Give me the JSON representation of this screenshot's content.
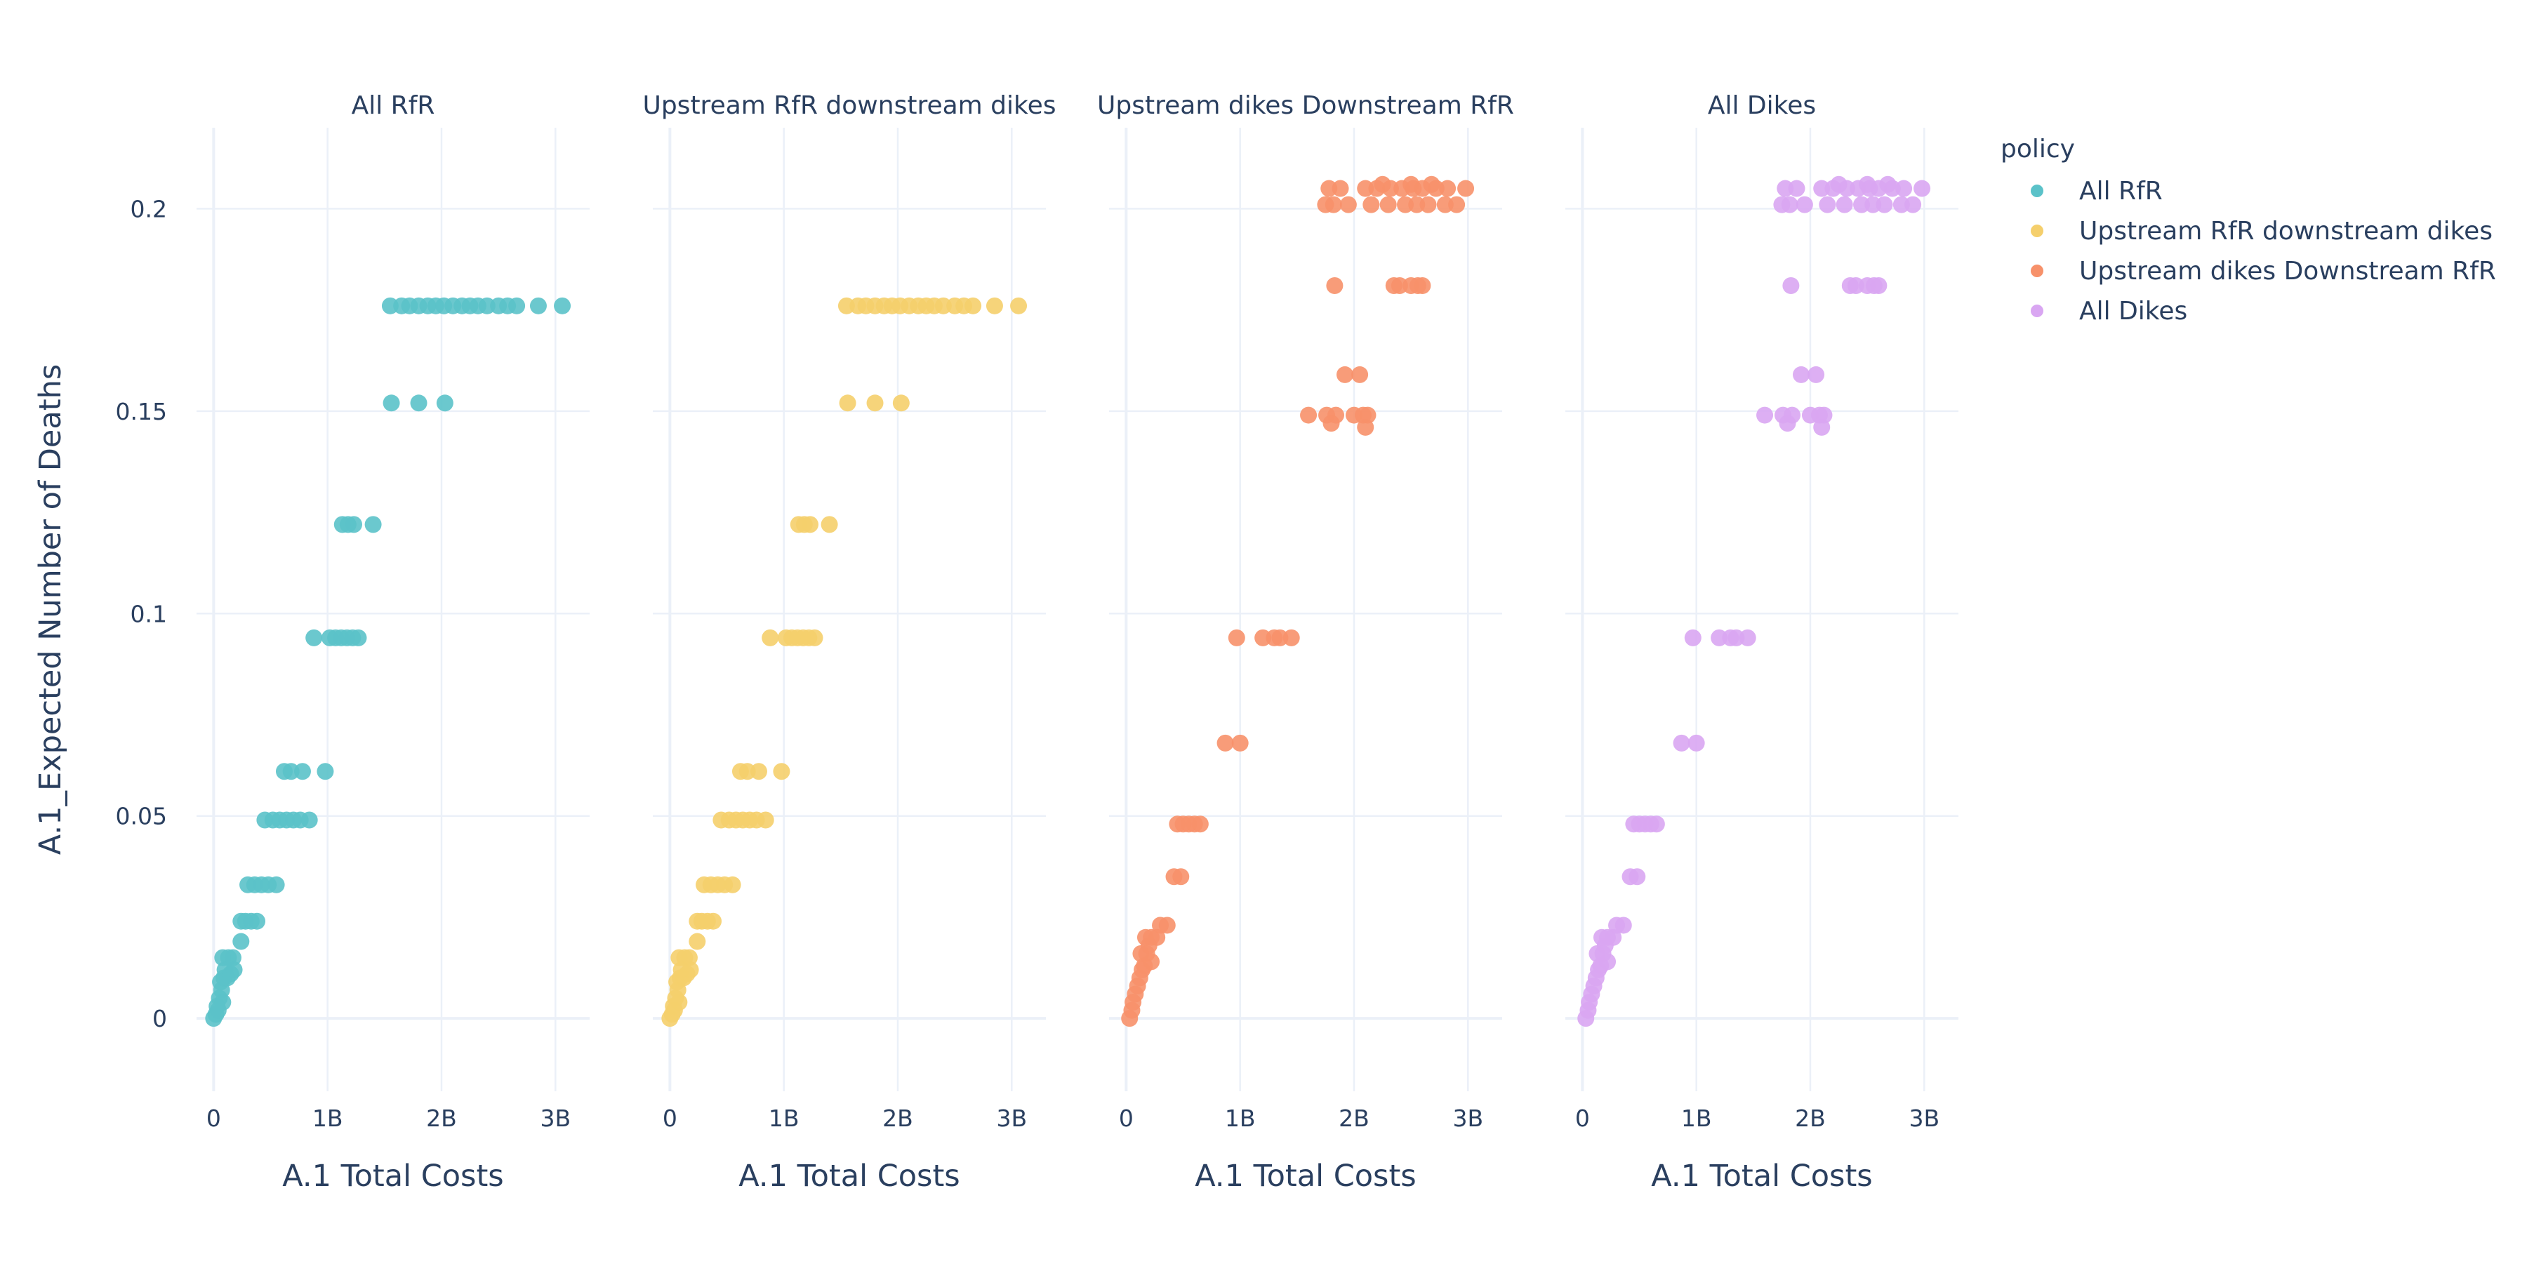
{
  "chart_data": {
    "type": "scatter",
    "ylabel": "A.1_Expected Number of Deaths",
    "xlabel": "A.1 Total Costs",
    "x_ticks": [
      {
        "v": 0,
        "label": "0"
      },
      {
        "v": 1,
        "label": "1B"
      },
      {
        "v": 2,
        "label": "2B"
      },
      {
        "v": 3,
        "label": "3B"
      }
    ],
    "y_ticks": [
      {
        "v": 0,
        "label": "0"
      },
      {
        "v": 0.05,
        "label": "0.05"
      },
      {
        "v": 0.1,
        "label": "0.1"
      },
      {
        "v": 0.15,
        "label": "0.15"
      },
      {
        "v": 0.2,
        "label": "0.2"
      }
    ],
    "xlim": [
      -0.15,
      3.3
    ],
    "ylim": [
      -0.018,
      0.22
    ],
    "grid": true,
    "x_unit_note": "x values in billions",
    "legend": {
      "title": "policy",
      "placement": "right"
    },
    "series": [
      {
        "name": "All RfR",
        "color": "#5bc2c9",
        "points": [
          [
            0.0,
            0.0
          ],
          [
            0.02,
            0.001
          ],
          [
            0.03,
            0.003
          ],
          [
            0.05,
            0.005
          ],
          [
            0.07,
            0.007
          ],
          [
            0.06,
            0.009
          ],
          [
            0.09,
            0.01
          ],
          [
            0.1,
            0.012
          ],
          [
            0.08,
            0.015
          ],
          [
            0.13,
            0.015
          ],
          [
            0.17,
            0.015
          ],
          [
            0.12,
            0.01
          ],
          [
            0.15,
            0.011
          ],
          [
            0.18,
            0.012
          ],
          [
            0.04,
            0.002
          ],
          [
            0.08,
            0.004
          ],
          [
            0.24,
            0.019
          ],
          [
            0.24,
            0.024
          ],
          [
            0.28,
            0.024
          ],
          [
            0.33,
            0.024
          ],
          [
            0.38,
            0.024
          ],
          [
            0.3,
            0.033
          ],
          [
            0.36,
            0.033
          ],
          [
            0.42,
            0.033
          ],
          [
            0.48,
            0.033
          ],
          [
            0.55,
            0.033
          ],
          [
            0.45,
            0.049
          ],
          [
            0.52,
            0.049
          ],
          [
            0.58,
            0.049
          ],
          [
            0.64,
            0.049
          ],
          [
            0.7,
            0.049
          ],
          [
            0.76,
            0.049
          ],
          [
            0.84,
            0.049
          ],
          [
            0.62,
            0.061
          ],
          [
            0.68,
            0.061
          ],
          [
            0.78,
            0.061
          ],
          [
            0.98,
            0.061
          ],
          [
            0.88,
            0.094
          ],
          [
            1.02,
            0.094
          ],
          [
            1.07,
            0.094
          ],
          [
            1.12,
            0.094
          ],
          [
            1.17,
            0.094
          ],
          [
            1.22,
            0.094
          ],
          [
            1.27,
            0.094
          ],
          [
            1.13,
            0.122
          ],
          [
            1.18,
            0.122
          ],
          [
            1.23,
            0.122
          ],
          [
            1.4,
            0.122
          ],
          [
            1.56,
            0.152
          ],
          [
            1.8,
            0.152
          ],
          [
            2.03,
            0.152
          ],
          [
            1.55,
            0.176
          ],
          [
            1.65,
            0.176
          ],
          [
            1.72,
            0.176
          ],
          [
            1.8,
            0.176
          ],
          [
            1.88,
            0.176
          ],
          [
            1.95,
            0.176
          ],
          [
            2.02,
            0.176
          ],
          [
            2.1,
            0.176
          ],
          [
            2.18,
            0.176
          ],
          [
            2.25,
            0.176
          ],
          [
            2.32,
            0.176
          ],
          [
            2.4,
            0.176
          ],
          [
            2.5,
            0.176
          ],
          [
            2.58,
            0.176
          ],
          [
            2.66,
            0.176
          ],
          [
            2.85,
            0.176
          ],
          [
            3.06,
            0.176
          ]
        ]
      },
      {
        "name": "Upstream RfR downstream dikes",
        "color": "#f5cf6c",
        "points": [
          [
            0.0,
            0.0
          ],
          [
            0.02,
            0.001
          ],
          [
            0.03,
            0.003
          ],
          [
            0.05,
            0.005
          ],
          [
            0.07,
            0.007
          ],
          [
            0.06,
            0.009
          ],
          [
            0.09,
            0.01
          ],
          [
            0.1,
            0.012
          ],
          [
            0.08,
            0.015
          ],
          [
            0.13,
            0.015
          ],
          [
            0.17,
            0.015
          ],
          [
            0.12,
            0.01
          ],
          [
            0.15,
            0.011
          ],
          [
            0.18,
            0.012
          ],
          [
            0.04,
            0.002
          ],
          [
            0.08,
            0.004
          ],
          [
            0.24,
            0.019
          ],
          [
            0.24,
            0.024
          ],
          [
            0.28,
            0.024
          ],
          [
            0.33,
            0.024
          ],
          [
            0.38,
            0.024
          ],
          [
            0.3,
            0.033
          ],
          [
            0.36,
            0.033
          ],
          [
            0.42,
            0.033
          ],
          [
            0.48,
            0.033
          ],
          [
            0.55,
            0.033
          ],
          [
            0.45,
            0.049
          ],
          [
            0.52,
            0.049
          ],
          [
            0.58,
            0.049
          ],
          [
            0.64,
            0.049
          ],
          [
            0.7,
            0.049
          ],
          [
            0.76,
            0.049
          ],
          [
            0.84,
            0.049
          ],
          [
            0.62,
            0.061
          ],
          [
            0.68,
            0.061
          ],
          [
            0.78,
            0.061
          ],
          [
            0.98,
            0.061
          ],
          [
            0.88,
            0.094
          ],
          [
            1.02,
            0.094
          ],
          [
            1.07,
            0.094
          ],
          [
            1.12,
            0.094
          ],
          [
            1.17,
            0.094
          ],
          [
            1.22,
            0.094
          ],
          [
            1.27,
            0.094
          ],
          [
            1.13,
            0.122
          ],
          [
            1.18,
            0.122
          ],
          [
            1.23,
            0.122
          ],
          [
            1.4,
            0.122
          ],
          [
            1.56,
            0.152
          ],
          [
            1.8,
            0.152
          ],
          [
            2.03,
            0.152
          ],
          [
            1.55,
            0.176
          ],
          [
            1.65,
            0.176
          ],
          [
            1.72,
            0.176
          ],
          [
            1.8,
            0.176
          ],
          [
            1.88,
            0.176
          ],
          [
            1.95,
            0.176
          ],
          [
            2.02,
            0.176
          ],
          [
            2.1,
            0.176
          ],
          [
            2.18,
            0.176
          ],
          [
            2.25,
            0.176
          ],
          [
            2.32,
            0.176
          ],
          [
            2.4,
            0.176
          ],
          [
            2.5,
            0.176
          ],
          [
            2.58,
            0.176
          ],
          [
            2.66,
            0.176
          ],
          [
            2.85,
            0.176
          ],
          [
            3.06,
            0.176
          ]
        ]
      },
      {
        "name": "Upstream dikes Downstream RfR",
        "color": "#f7916a",
        "points": [
          [
            0.03,
            0.0
          ],
          [
            0.05,
            0.002
          ],
          [
            0.06,
            0.004
          ],
          [
            0.08,
            0.006
          ],
          [
            0.1,
            0.008
          ],
          [
            0.12,
            0.01
          ],
          [
            0.14,
            0.012
          ],
          [
            0.16,
            0.013
          ],
          [
            0.13,
            0.016
          ],
          [
            0.18,
            0.016
          ],
          [
            0.2,
            0.018
          ],
          [
            0.17,
            0.02
          ],
          [
            0.22,
            0.02
          ],
          [
            0.27,
            0.02
          ],
          [
            0.22,
            0.014
          ],
          [
            0.3,
            0.023
          ],
          [
            0.36,
            0.023
          ],
          [
            0.42,
            0.035
          ],
          [
            0.48,
            0.035
          ],
          [
            0.45,
            0.048
          ],
          [
            0.5,
            0.048
          ],
          [
            0.55,
            0.048
          ],
          [
            0.6,
            0.048
          ],
          [
            0.65,
            0.048
          ],
          [
            0.87,
            0.068
          ],
          [
            1.0,
            0.068
          ],
          [
            0.97,
            0.094
          ],
          [
            1.2,
            0.094
          ],
          [
            1.3,
            0.094
          ],
          [
            1.35,
            0.094
          ],
          [
            1.45,
            0.094
          ],
          [
            1.6,
            0.149
          ],
          [
            1.76,
            0.149
          ],
          [
            1.8,
            0.147
          ],
          [
            1.84,
            0.149
          ],
          [
            2.0,
            0.149
          ],
          [
            2.08,
            0.149
          ],
          [
            2.12,
            0.149
          ],
          [
            2.1,
            0.146
          ],
          [
            1.92,
            0.159
          ],
          [
            2.05,
            0.159
          ],
          [
            1.83,
            0.181
          ],
          [
            2.35,
            0.181
          ],
          [
            2.4,
            0.181
          ],
          [
            2.5,
            0.181
          ],
          [
            2.56,
            0.181
          ],
          [
            2.6,
            0.181
          ],
          [
            1.75,
            0.201
          ],
          [
            1.82,
            0.201
          ],
          [
            1.95,
            0.201
          ],
          [
            2.15,
            0.201
          ],
          [
            2.3,
            0.201
          ],
          [
            2.45,
            0.201
          ],
          [
            2.55,
            0.201
          ],
          [
            2.65,
            0.201
          ],
          [
            2.8,
            0.201
          ],
          [
            2.9,
            0.201
          ],
          [
            1.78,
            0.205
          ],
          [
            1.88,
            0.205
          ],
          [
            2.1,
            0.205
          ],
          [
            2.2,
            0.205
          ],
          [
            2.32,
            0.205
          ],
          [
            2.42,
            0.205
          ],
          [
            2.52,
            0.205
          ],
          [
            2.6,
            0.205
          ],
          [
            2.72,
            0.205
          ],
          [
            2.82,
            0.205
          ],
          [
            2.98,
            0.205
          ],
          [
            2.25,
            0.206
          ],
          [
            2.5,
            0.206
          ],
          [
            2.68,
            0.206
          ]
        ]
      },
      {
        "name": "All Dikes",
        "color": "#d9a6f2",
        "points": [
          [
            0.03,
            0.0
          ],
          [
            0.05,
            0.002
          ],
          [
            0.06,
            0.004
          ],
          [
            0.08,
            0.006
          ],
          [
            0.1,
            0.008
          ],
          [
            0.12,
            0.01
          ],
          [
            0.14,
            0.012
          ],
          [
            0.16,
            0.013
          ],
          [
            0.13,
            0.016
          ],
          [
            0.18,
            0.016
          ],
          [
            0.2,
            0.018
          ],
          [
            0.17,
            0.02
          ],
          [
            0.22,
            0.02
          ],
          [
            0.27,
            0.02
          ],
          [
            0.22,
            0.014
          ],
          [
            0.3,
            0.023
          ],
          [
            0.36,
            0.023
          ],
          [
            0.42,
            0.035
          ],
          [
            0.48,
            0.035
          ],
          [
            0.45,
            0.048
          ],
          [
            0.5,
            0.048
          ],
          [
            0.55,
            0.048
          ],
          [
            0.6,
            0.048
          ],
          [
            0.65,
            0.048
          ],
          [
            0.87,
            0.068
          ],
          [
            1.0,
            0.068
          ],
          [
            0.97,
            0.094
          ],
          [
            1.2,
            0.094
          ],
          [
            1.3,
            0.094
          ],
          [
            1.35,
            0.094
          ],
          [
            1.45,
            0.094
          ],
          [
            1.6,
            0.149
          ],
          [
            1.76,
            0.149
          ],
          [
            1.8,
            0.147
          ],
          [
            1.84,
            0.149
          ],
          [
            2.0,
            0.149
          ],
          [
            2.08,
            0.149
          ],
          [
            2.12,
            0.149
          ],
          [
            2.1,
            0.146
          ],
          [
            1.92,
            0.159
          ],
          [
            2.05,
            0.159
          ],
          [
            1.83,
            0.181
          ],
          [
            2.35,
            0.181
          ],
          [
            2.4,
            0.181
          ],
          [
            2.5,
            0.181
          ],
          [
            2.56,
            0.181
          ],
          [
            2.6,
            0.181
          ],
          [
            1.75,
            0.201
          ],
          [
            1.82,
            0.201
          ],
          [
            1.95,
            0.201
          ],
          [
            2.15,
            0.201
          ],
          [
            2.3,
            0.201
          ],
          [
            2.45,
            0.201
          ],
          [
            2.55,
            0.201
          ],
          [
            2.65,
            0.201
          ],
          [
            2.8,
            0.201
          ],
          [
            2.9,
            0.201
          ],
          [
            1.78,
            0.205
          ],
          [
            1.88,
            0.205
          ],
          [
            2.1,
            0.205
          ],
          [
            2.2,
            0.205
          ],
          [
            2.32,
            0.205
          ],
          [
            2.42,
            0.205
          ],
          [
            2.52,
            0.205
          ],
          [
            2.6,
            0.205
          ],
          [
            2.72,
            0.205
          ],
          [
            2.82,
            0.205
          ],
          [
            2.98,
            0.205
          ],
          [
            2.25,
            0.206
          ],
          [
            2.5,
            0.206
          ],
          [
            2.68,
            0.206
          ]
        ]
      }
    ]
  },
  "colors": {
    "text": "#2a3f5f",
    "grid": "#ebf0f8",
    "zeroline": "#ebf0f8",
    "background": "#ffffff"
  }
}
